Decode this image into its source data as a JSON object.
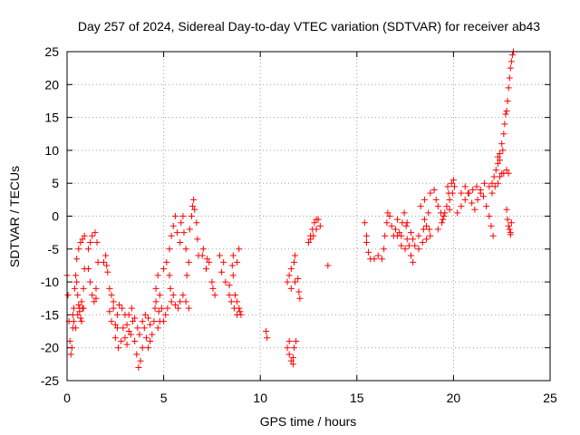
{
  "chart_data": {
    "type": "scatter",
    "title": "Day 257 of 2024, Sidereal Day-to-day VTEC variation (SDTVAR) for receiver ab43",
    "xlabel": "GPS time / hours",
    "ylabel": "SDTVAR / TECUs",
    "xlim": [
      0,
      25
    ],
    "ylim": [
      -25,
      25
    ],
    "x_ticks": [
      0,
      5,
      10,
      15,
      20,
      25
    ],
    "y_ticks": [
      -25,
      -20,
      -15,
      -10,
      -5,
      0,
      5,
      10,
      15,
      20,
      25
    ],
    "grid": true,
    "marker": "+",
    "color": "#ff0000",
    "series": [
      {
        "name": "SDTVAR",
        "points": [
          [
            0.0,
            -9
          ],
          [
            0.05,
            -12
          ],
          [
            0.1,
            -16
          ],
          [
            0.15,
            -19
          ],
          [
            0.2,
            -21
          ],
          [
            0.25,
            -20
          ],
          [
            0.3,
            -17
          ],
          [
            0.35,
            -14
          ],
          [
            0.4,
            -11
          ],
          [
            0.45,
            -9
          ],
          [
            0.5,
            -10
          ],
          [
            0.55,
            -12
          ],
          [
            0.6,
            -13.5
          ],
          [
            0.65,
            -14.5
          ],
          [
            0.7,
            -15.5
          ],
          [
            0.75,
            -16
          ],
          [
            0.8,
            -14
          ],
          [
            0.85,
            -11
          ],
          [
            0.9,
            -8
          ],
          [
            0.5,
            -6.5
          ],
          [
            0.6,
            -5
          ],
          [
            0.7,
            -4
          ],
          [
            0.8,
            -3.5
          ],
          [
            0.9,
            -3
          ],
          [
            0.3,
            -15
          ],
          [
            0.35,
            -16
          ],
          [
            0.45,
            -17
          ],
          [
            0.55,
            -15
          ],
          [
            0.65,
            -14
          ],
          [
            0.75,
            -13
          ],
          [
            0.85,
            -14
          ],
          [
            1.1,
            -8
          ],
          [
            1.2,
            -10
          ],
          [
            1.3,
            -12
          ],
          [
            1.4,
            -13
          ],
          [
            1.5,
            -11
          ],
          [
            1.1,
            -5
          ],
          [
            1.2,
            -4
          ],
          [
            1.3,
            -3
          ],
          [
            1.45,
            -2.5
          ],
          [
            1.55,
            -4
          ],
          [
            1.6,
            -7
          ],
          [
            1.5,
            -12.5
          ],
          [
            1.9,
            -7
          ],
          [
            2.0,
            -6
          ],
          [
            2.05,
            -7.5
          ],
          [
            2.1,
            -8.5
          ],
          [
            2.2,
            -11
          ],
          [
            2.3,
            -12
          ],
          [
            2.4,
            -13
          ],
          [
            2.2,
            -14.5
          ],
          [
            2.3,
            -16
          ],
          [
            2.5,
            -16.5
          ],
          [
            2.6,
            -17
          ],
          [
            2.6,
            -15
          ],
          [
            2.4,
            -14
          ],
          [
            2.5,
            -18.5
          ],
          [
            2.65,
            -20
          ],
          [
            2.8,
            -19
          ],
          [
            2.9,
            -17
          ],
          [
            2.7,
            -13.5
          ],
          [
            2.85,
            -14
          ],
          [
            3.0,
            -15
          ],
          [
            3.1,
            -16.5
          ],
          [
            3.2,
            -17.5
          ],
          [
            3.3,
            -18
          ],
          [
            3.0,
            -18.5
          ],
          [
            3.1,
            -19.5
          ],
          [
            3.2,
            -15
          ],
          [
            3.35,
            -14
          ],
          [
            3.4,
            -16
          ],
          [
            3.5,
            -19
          ],
          [
            3.6,
            -21
          ],
          [
            3.7,
            -23
          ],
          [
            3.8,
            -22
          ],
          [
            3.9,
            -20
          ],
          [
            3.5,
            -15.5
          ],
          [
            3.65,
            -17
          ],
          [
            3.75,
            -18
          ],
          [
            3.9,
            -16
          ],
          [
            4.0,
            -17
          ],
          [
            4.1,
            -18.5
          ],
          [
            4.2,
            -20
          ],
          [
            4.3,
            -19
          ],
          [
            4.4,
            -18
          ],
          [
            4.05,
            -15
          ],
          [
            4.2,
            -15.5
          ],
          [
            4.3,
            -16.5
          ],
          [
            4.5,
            -16
          ],
          [
            4.55,
            -14
          ],
          [
            4.6,
            -13
          ],
          [
            4.75,
            -14.5
          ],
          [
            4.8,
            -16
          ],
          [
            4.7,
            -17
          ],
          [
            4.6,
            -11
          ],
          [
            4.7,
            -9
          ],
          [
            4.8,
            -12
          ],
          [
            4.9,
            -14
          ],
          [
            5.0,
            -16
          ],
          [
            5.1,
            -15
          ],
          [
            5.2,
            -14
          ],
          [
            5.0,
            -8
          ],
          [
            5.15,
            -7
          ],
          [
            5.3,
            -9
          ],
          [
            5.35,
            -11
          ],
          [
            5.4,
            -13
          ],
          [
            5.5,
            -12
          ],
          [
            5.6,
            -13.5
          ],
          [
            5.75,
            -14
          ],
          [
            5.85,
            -13
          ],
          [
            6.0,
            -12
          ],
          [
            6.15,
            -13
          ],
          [
            6.3,
            -14
          ],
          [
            5.3,
            -5
          ],
          [
            5.4,
            -3
          ],
          [
            5.5,
            -1.5
          ],
          [
            5.6,
            0
          ],
          [
            5.7,
            -2.5
          ],
          [
            5.85,
            -4
          ],
          [
            5.9,
            -1
          ],
          [
            6.0,
            0
          ],
          [
            6.05,
            -2.5
          ],
          [
            6.15,
            -5
          ],
          [
            6.2,
            -9
          ],
          [
            6.3,
            -7
          ],
          [
            6.35,
            -2
          ],
          [
            6.45,
            0
          ],
          [
            6.5,
            1.5
          ],
          [
            6.55,
            2.5
          ],
          [
            6.6,
            1
          ],
          [
            6.7,
            -1
          ],
          [
            6.75,
            -3.5
          ],
          [
            6.8,
            -6
          ],
          [
            7.0,
            -6
          ],
          [
            7.05,
            -5
          ],
          [
            7.2,
            -8
          ],
          [
            7.25,
            -6.5
          ],
          [
            7.35,
            -7
          ],
          [
            7.5,
            -10
          ],
          [
            7.55,
            -11
          ],
          [
            7.65,
            -12
          ],
          [
            7.9,
            -6
          ],
          [
            8.0,
            -8.5
          ],
          [
            8.1,
            -7
          ],
          [
            8.2,
            -10
          ],
          [
            8.4,
            -10.5
          ],
          [
            8.55,
            -7.5
          ],
          [
            8.6,
            -9
          ],
          [
            8.7,
            -12
          ],
          [
            8.8,
            -13
          ],
          [
            8.9,
            -14
          ],
          [
            9.0,
            -15
          ],
          [
            8.4,
            -12
          ],
          [
            8.5,
            -13
          ],
          [
            8.65,
            -14
          ],
          [
            8.8,
            -15
          ],
          [
            8.95,
            -14.5
          ],
          [
            8.6,
            -6
          ],
          [
            8.8,
            -7
          ],
          [
            8.9,
            -5
          ],
          [
            10.3,
            -17.5
          ],
          [
            10.35,
            -18.5
          ],
          [
            11.4,
            -20
          ],
          [
            11.5,
            -21
          ],
          [
            11.6,
            -22
          ],
          [
            11.7,
            -21.5
          ],
          [
            11.75,
            -20
          ],
          [
            11.85,
            -19
          ],
          [
            11.5,
            -19
          ],
          [
            11.7,
            -22.5
          ],
          [
            11.4,
            -10
          ],
          [
            11.5,
            -9
          ],
          [
            11.6,
            -8
          ],
          [
            11.75,
            -7
          ],
          [
            11.8,
            -6
          ],
          [
            11.95,
            -9.5
          ],
          [
            12.0,
            -11.5
          ],
          [
            12.05,
            -12.5
          ],
          [
            11.6,
            -11
          ],
          [
            11.8,
            -10
          ],
          [
            12.5,
            -4
          ],
          [
            12.6,
            -3
          ],
          [
            12.7,
            -2
          ],
          [
            12.8,
            -1
          ],
          [
            12.9,
            -0.5
          ],
          [
            13.0,
            -0.5
          ],
          [
            12.75,
            -3
          ],
          [
            12.9,
            -2
          ],
          [
            13.1,
            -1.5
          ],
          [
            12.6,
            -3.5
          ],
          [
            13.5,
            -7.5
          ],
          [
            15.4,
            -1
          ],
          [
            15.5,
            -4
          ],
          [
            15.6,
            -5.5
          ],
          [
            15.7,
            -6.5
          ],
          [
            15.9,
            -6.5
          ],
          [
            16.1,
            -6
          ],
          [
            16.3,
            -6.5
          ],
          [
            15.5,
            -3
          ],
          [
            16.4,
            -5
          ],
          [
            16.45,
            -3
          ],
          [
            16.55,
            -1
          ],
          [
            16.6,
            0.5
          ],
          [
            16.7,
            0
          ],
          [
            16.8,
            -1.5
          ],
          [
            16.9,
            -3
          ],
          [
            17.0,
            -2
          ],
          [
            17.1,
            -0.5
          ],
          [
            17.2,
            -2.5
          ],
          [
            17.3,
            -3
          ],
          [
            17.35,
            -1
          ],
          [
            17.45,
            0.5
          ],
          [
            17.55,
            -1.5
          ],
          [
            17.6,
            -3.5
          ],
          [
            17.7,
            -4.5
          ],
          [
            17.8,
            -6
          ],
          [
            17.9,
            -7
          ],
          [
            17.5,
            -5
          ],
          [
            17.3,
            -4.5
          ],
          [
            17.1,
            -3
          ],
          [
            17.6,
            -1
          ],
          [
            17.8,
            -2.5
          ],
          [
            17.9,
            -3.5
          ],
          [
            18.0,
            -4.5
          ],
          [
            18.2,
            -5
          ],
          [
            18.4,
            -4
          ],
          [
            18.6,
            -3.5
          ],
          [
            18.8,
            -3
          ],
          [
            18.2,
            -3
          ],
          [
            18.45,
            -2
          ],
          [
            18.5,
            -0.5
          ],
          [
            18.6,
            -1.5
          ],
          [
            18.7,
            0.5
          ],
          [
            18.75,
            -2
          ],
          [
            18.3,
            1.5
          ],
          [
            18.5,
            2.5
          ],
          [
            18.8,
            3.5
          ],
          [
            19.0,
            4
          ],
          [
            19.1,
            2.5
          ],
          [
            19.2,
            1.5
          ],
          [
            19.35,
            0.5
          ],
          [
            19.4,
            -1
          ],
          [
            19.45,
            -0.5
          ],
          [
            19.55,
            0.5
          ],
          [
            19.65,
            1.5
          ],
          [
            19.8,
            2.5
          ],
          [
            19.95,
            3.5
          ],
          [
            20.05,
            4.5
          ],
          [
            19.7,
            4.5
          ],
          [
            19.9,
            5
          ],
          [
            20.0,
            5.5
          ],
          [
            19.75,
            3.5
          ],
          [
            19.2,
            -2
          ],
          [
            19.5,
            0
          ],
          [
            19.8,
            1
          ],
          [
            20.2,
            0.5
          ],
          [
            20.4,
            1.5
          ],
          [
            20.6,
            2.5
          ],
          [
            20.8,
            3.5
          ],
          [
            21.0,
            4
          ],
          [
            21.2,
            4.5
          ],
          [
            21.4,
            4
          ],
          [
            21.55,
            3
          ],
          [
            21.7,
            1.5
          ],
          [
            21.85,
            0
          ],
          [
            21.95,
            -1.5
          ],
          [
            22.05,
            -3
          ],
          [
            20.4,
            3.5
          ],
          [
            20.6,
            4.5
          ],
          [
            20.75,
            3.5
          ],
          [
            20.95,
            2
          ],
          [
            21.1,
            1
          ],
          [
            21.25,
            2.5
          ],
          [
            21.4,
            3.5
          ],
          [
            21.6,
            5
          ],
          [
            21.85,
            4.5
          ],
          [
            22.0,
            3.5
          ],
          [
            22.15,
            4.5
          ],
          [
            22.3,
            5
          ],
          [
            22.4,
            6
          ],
          [
            22.5,
            6.5
          ],
          [
            22.6,
            6.5
          ],
          [
            22.75,
            7
          ],
          [
            22.85,
            6.5
          ],
          [
            22.0,
            5
          ],
          [
            22.1,
            6
          ],
          [
            22.2,
            7
          ],
          [
            22.3,
            8
          ],
          [
            22.4,
            9.5
          ],
          [
            22.5,
            11
          ],
          [
            22.6,
            12.5
          ],
          [
            22.4,
            8.5
          ],
          [
            22.55,
            10
          ],
          [
            22.3,
            9
          ],
          [
            22.65,
            14
          ],
          [
            22.7,
            15.5
          ],
          [
            22.75,
            16
          ],
          [
            22.8,
            17.5
          ],
          [
            22.85,
            19.5
          ],
          [
            22.9,
            21
          ],
          [
            22.95,
            22.5
          ],
          [
            23.0,
            23.5
          ],
          [
            23.05,
            24.5
          ],
          [
            23.1,
            25
          ],
          [
            22.75,
            1
          ],
          [
            22.8,
            -0.5
          ],
          [
            22.85,
            -1.5
          ],
          [
            22.9,
            -2
          ],
          [
            22.95,
            -2.5
          ],
          [
            23.0,
            -1
          ],
          [
            22.95,
            -2.8
          ]
        ]
      }
    ]
  }
}
